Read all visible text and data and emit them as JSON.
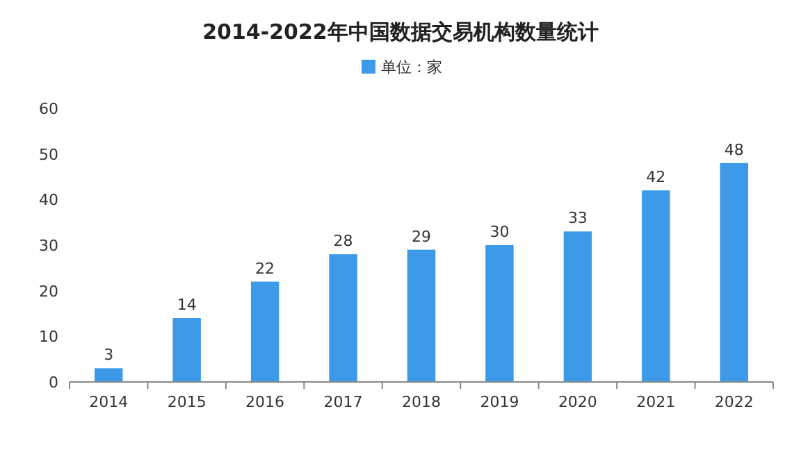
{
  "chart_data": {
    "type": "bar",
    "title": "2014-2022年中国数据交易机构数量统计",
    "categories": [
      "2014",
      "2015",
      "2016",
      "2017",
      "2018",
      "2019",
      "2020",
      "2021",
      "2022"
    ],
    "series": [
      {
        "name": "单位：家",
        "color": "#3d9ae8",
        "values": [
          3,
          14,
          22,
          28,
          29,
          30,
          33,
          42,
          48
        ]
      }
    ],
    "ylim": [
      0,
      60
    ],
    "yticks": [
      0,
      10,
      20,
      30,
      40,
      50,
      60
    ],
    "grid": false,
    "legend": "top",
    "data_labels": true
  }
}
